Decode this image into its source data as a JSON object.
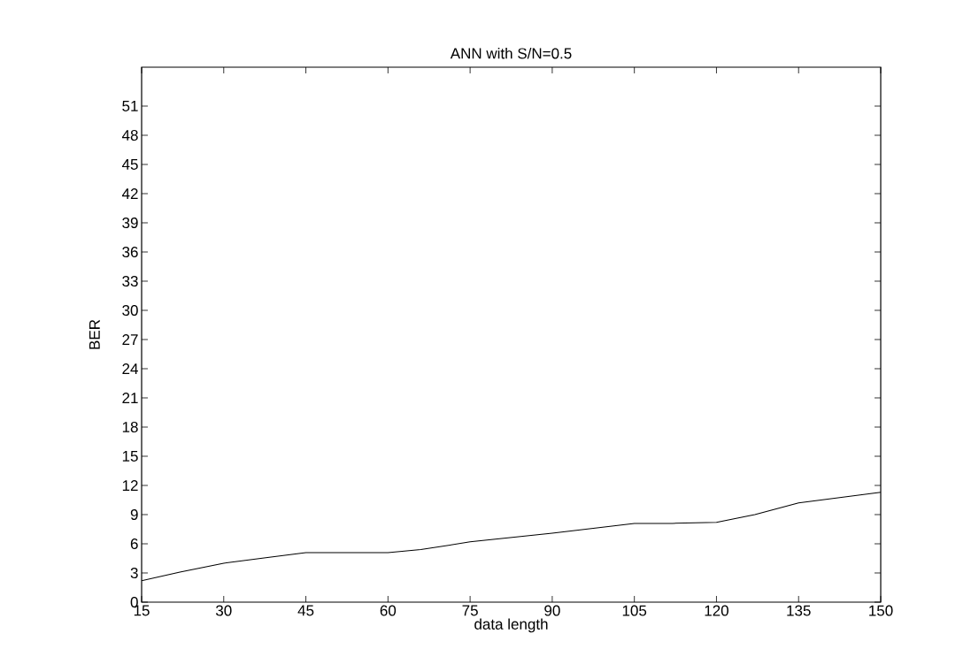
{
  "chart_data": {
    "type": "line",
    "title": "ANN with S/N=0.5",
    "xlabel": "data length",
    "ylabel": "BER",
    "x": [
      15,
      22,
      30,
      38,
      45,
      60,
      66,
      75,
      90,
      105,
      112,
      120,
      127,
      135,
      150
    ],
    "series": [
      {
        "color": "#000000",
        "values": [
          2.2,
          3.1,
          4.0,
          4.6,
          5.1,
          5.1,
          5.4,
          6.2,
          7.1,
          8.1,
          8.1,
          8.2,
          9.0,
          10.2,
          11.3
        ]
      }
    ],
    "xlim": [
      15,
      150
    ],
    "ylim": [
      0,
      55
    ],
    "xticks": [
      15,
      30,
      45,
      60,
      75,
      90,
      105,
      120,
      135,
      150
    ],
    "yticks": [
      0,
      3,
      6,
      9,
      12,
      15,
      18,
      21,
      24,
      27,
      30,
      33,
      36,
      39,
      42,
      45,
      48,
      51
    ],
    "marker": "none",
    "line_style": "solid"
  }
}
